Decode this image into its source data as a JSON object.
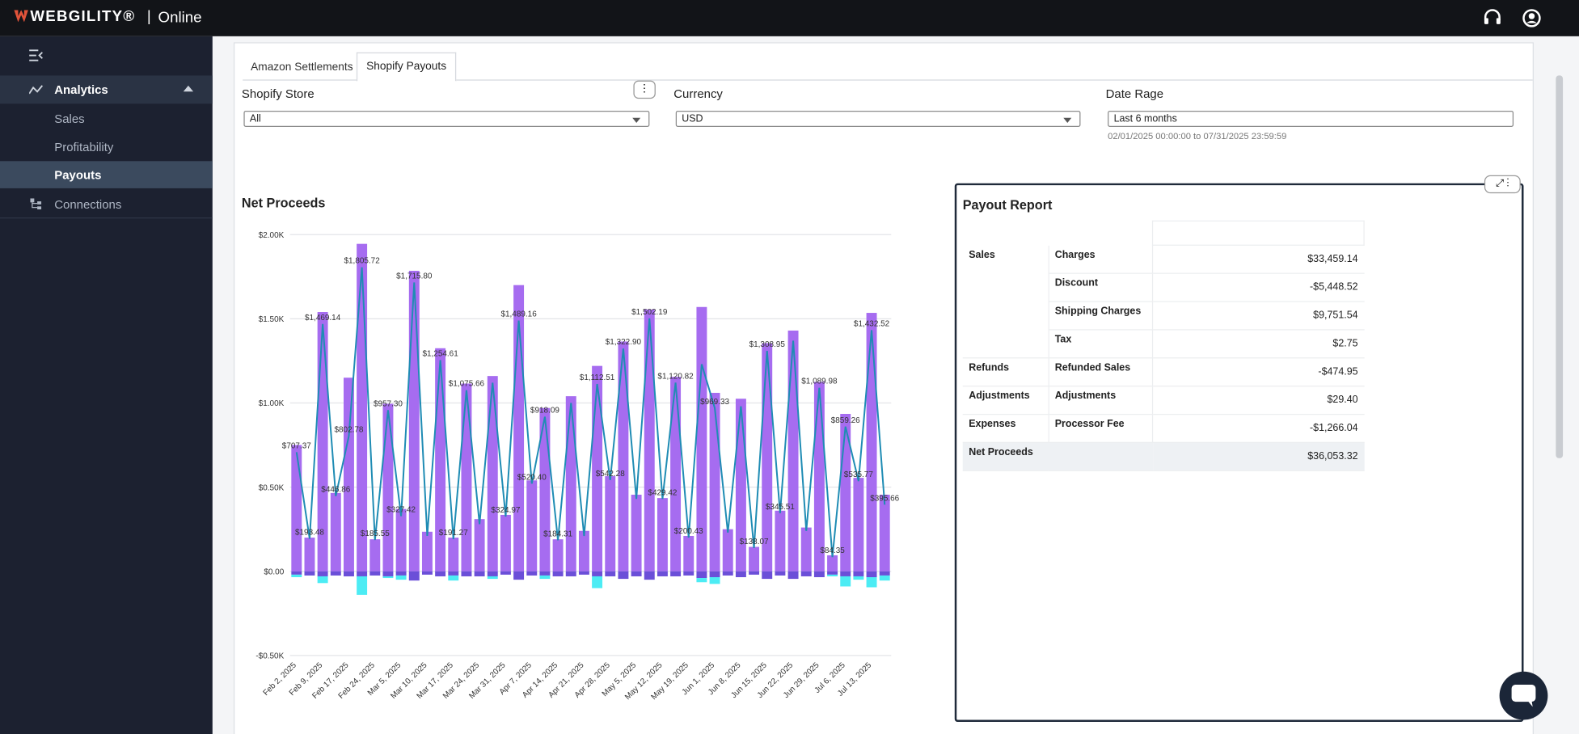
{
  "header": {
    "brand": "WEBGILITY®",
    "separator": "|",
    "suffix": "Online"
  },
  "sidebar": {
    "analytics": "Analytics",
    "sub": [
      "Sales",
      "Profitability",
      "Payouts"
    ],
    "connections": "Connections"
  },
  "tabs": [
    "Amazon Settlements",
    "Shopify Payouts"
  ],
  "filters": {
    "store": {
      "label": "Shopify Store",
      "value": "All"
    },
    "currency": {
      "label": "Currency",
      "value": "USD"
    },
    "date": {
      "label": "Date Rage",
      "value": "Last 6 months",
      "range": "02/01/2025 00:00:00 to 07/31/2025 23:59:59"
    }
  },
  "chart_data": {
    "type": "bar",
    "title": "Net Proceeds",
    "categories": [
      "Feb 2, 2025",
      null,
      "Feb 9, 2025",
      null,
      "Feb 17, 2025",
      null,
      "Feb 24, 2025",
      null,
      "Mar 5, 2025",
      null,
      "Mar 10, 2025",
      null,
      "Mar 17, 2025",
      null,
      "Mar 24, 2025",
      null,
      "Mar 31, 2025",
      null,
      "Apr 7, 2025",
      null,
      "Apr 14, 2025",
      null,
      "Apr 21, 2025",
      null,
      "Apr 28, 2025",
      null,
      "May 5, 2025",
      null,
      "May 12, 2025",
      null,
      "May 19, 2025",
      null,
      "Jun 1, 2025",
      null,
      "Jun 8, 2025",
      null,
      "Jun 15, 2025",
      null,
      "Jun 22, 2025",
      null,
      "Jun 29, 2025",
      null,
      "Jul 6, 2025",
      null,
      "Jul 13, 2025",
      null
    ],
    "series": [
      {
        "kind": "bar",
        "color": "#a66cf0",
        "values": [
          750,
          200,
          1540,
          465,
          1150,
          1945,
          190,
          995,
          370,
          1785,
          235,
          1325,
          200,
          1115,
          310,
          1160,
          335,
          1700,
          540,
          970,
          190,
          1040,
          240,
          1220,
          565,
          1365,
          455,
          1555,
          435,
          1155,
          210,
          1570,
          1060,
          250,
          1025,
          145,
          1355,
          360,
          1430,
          260,
          1125,
          95,
          935,
          555,
          1535,
          455
        ]
      },
      {
        "kind": "bar",
        "color": "#6b4fd8",
        "values": [
          -20,
          -25,
          -30,
          -25,
          -30,
          -30,
          -25,
          -30,
          -25,
          -55,
          -20,
          -30,
          -25,
          -30,
          -30,
          -30,
          -20,
          -50,
          -25,
          -25,
          -30,
          -30,
          -20,
          -30,
          -30,
          -45,
          -30,
          -50,
          -30,
          -30,
          -25,
          -40,
          -35,
          -25,
          -35,
          -20,
          -45,
          -25,
          -45,
          -30,
          -35,
          -20,
          -30,
          -30,
          -35,
          -25
        ]
      },
      {
        "kind": "bar",
        "color": "#4cecf4",
        "values": [
          -15,
          0,
          -40,
          0,
          0,
          -110,
          0,
          -10,
          -25,
          0,
          0,
          0,
          -30,
          0,
          0,
          -15,
          0,
          0,
          0,
          -20,
          0,
          0,
          0,
          -70,
          0,
          0,
          0,
          0,
          0,
          0,
          0,
          -25,
          -40,
          0,
          0,
          0,
          0,
          0,
          0,
          0,
          0,
          -10,
          -60,
          -20,
          -60,
          -30
        ]
      },
      {
        "kind": "line",
        "color": "#1f8cb4",
        "values": [
          707.37,
          193.48,
          1469.14,
          446.86,
          802.78,
          1805.72,
          185.55,
          957.3,
          327.42,
          1715.8,
          210,
          1254.61,
          191.27,
          1075.66,
          280,
          1120,
          324.97,
          1489.16,
          520.4,
          918.09,
          184.31,
          1000,
          210,
          1112.51,
          542.28,
          1322.9,
          430,
          1502.19,
          429.42,
          1120.82,
          200.43,
          1230,
          969.33,
          230,
          980,
          138.07,
          1308.95,
          345.51,
          1370,
          240,
          1089.98,
          84.35,
          859.26,
          535.77,
          1432.52,
          395.66
        ],
        "value_labels": [
          "$707.37",
          "$193.48",
          "$1,469.14",
          "$446.86",
          "$802.78",
          "$1,805.72",
          "$185.55",
          "$957.30",
          "$327.42",
          "$1,715.80",
          null,
          "$1,254.61",
          "$191.27",
          "$1,075.66",
          null,
          null,
          "$324.97",
          "$1,489.16",
          "$520.40",
          "$918.09",
          "$184.31",
          null,
          null,
          "$1,112.51",
          "$542.28",
          "$1,322.90",
          null,
          "$1,502.19",
          "$429.42",
          "$1,120.82",
          "$200.43",
          null,
          "$969.33",
          null,
          null,
          "$138.07",
          "$1,308.95",
          "$345.51",
          null,
          null,
          "$1,089.98",
          "$84.35",
          "$859.26",
          "$535.77",
          "$1,432.52",
          "$395.66"
        ]
      }
    ],
    "ylim": [
      -500,
      2000
    ],
    "yticks": [
      {
        "value": -500,
        "label": "-$0.50K"
      },
      {
        "value": 0,
        "label": "$0.00"
      },
      {
        "value": 500,
        "label": "$0.50K"
      },
      {
        "value": 1000,
        "label": "$1.00K"
      },
      {
        "value": 1500,
        "label": "$1.50K"
      },
      {
        "value": 2000,
        "label": "$2.00K"
      }
    ],
    "grid": true
  },
  "payout_report": {
    "title": "Payout Report",
    "groups": [
      {
        "group": "Sales",
        "items": [
          [
            "Charges",
            "$33,459.14"
          ],
          [
            "Discount",
            "-$5,448.52"
          ],
          [
            "Shipping Charges",
            "$9,751.54"
          ],
          [
            "Tax",
            "$2.75"
          ]
        ]
      },
      {
        "group": "Refunds",
        "items": [
          [
            "Refunded Sales",
            "-$474.95"
          ]
        ]
      },
      {
        "group": "Adjustments",
        "items": [
          [
            "Adjustments",
            "$29.40"
          ]
        ]
      },
      {
        "group": "Expenses",
        "items": [
          [
            "Processor Fee",
            "-$1,266.04"
          ]
        ]
      }
    ],
    "total": {
      "label": "Net Proceeds",
      "value": "$36,053.32"
    }
  }
}
